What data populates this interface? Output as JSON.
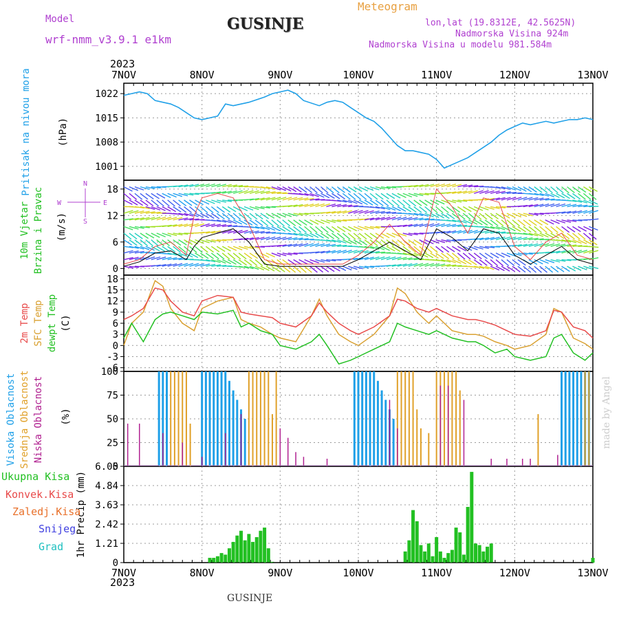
{
  "header": {
    "model_label": "Model",
    "model_name": "wrf-nmm_v3.9.1 e1km",
    "title": "GUSINJE",
    "meteogram": "Meteogram",
    "lonlat": "lon,lat (19.8312E, 42.5625N)",
    "elevation": "Nadmorska Visina 924m",
    "model_elevation": "Nadmorska Visina u modelu 981.584m",
    "year": "2023",
    "footer": "GUSINJE",
    "watermark": "made by Angel"
  },
  "colors": {
    "pressure": "#1fa0e8",
    "temp2m": "#e84a4a",
    "sfc": "#d9a030",
    "dewpt": "#22c022",
    "high_cloud": "#1fa0e8",
    "mid_cloud": "#e0a028",
    "low_cloud": "#b02090",
    "precip": "#22c022",
    "purple_label": "#b040d0",
    "orange_label": "#e8a040"
  },
  "chart_data": [
    {
      "type": "line",
      "panel": "pressure",
      "ylabel_1": "Pritisak na nivou mora",
      "ylabel_2": "(hPa)",
      "x_ticks": [
        "7NOV",
        "8NOV",
        "9NOV",
        "10NOV",
        "11NOV",
        "12NOV",
        "13NOV"
      ],
      "yticks": [
        1022,
        1015,
        1008,
        1001
      ],
      "ylim": [
        997,
        1025
      ],
      "x": [
        0,
        0.1,
        0.2,
        0.3,
        0.4,
        0.5,
        0.6,
        0.7,
        0.8,
        0.9,
        1.0,
        1.1,
        1.2,
        1.3,
        1.4,
        1.5,
        1.6,
        1.8,
        1.9,
        2.0,
        2.1,
        2.2,
        2.3,
        2.5,
        2.6,
        2.7,
        2.8,
        2.9,
        3.0,
        3.1,
        3.2,
        3.3,
        3.4,
        3.5,
        3.6,
        3.7,
        3.8,
        3.9,
        4.0,
        4.1,
        4.2,
        4.3,
        4.4,
        4.5,
        4.6,
        4.7,
        4.8,
        4.9,
        5.0,
        5.1,
        5.2,
        5.3,
        5.4,
        5.5,
        5.6,
        5.7,
        5.8,
        5.9,
        6.0
      ],
      "series": [
        {
          "values": [
            1021.5,
            1022,
            1022.5,
            1022,
            1020,
            1019.5,
            1019,
            1018,
            1016.5,
            1015,
            1014.5,
            1015,
            1015.5,
            1019,
            1018.5,
            1019,
            1019.5,
            1021,
            1022,
            1022.5,
            1023,
            1022,
            1020,
            1018.5,
            1019.5,
            1020,
            1019.5,
            1018,
            1016.5,
            1015,
            1014,
            1012,
            1009.5,
            1007,
            1005.5,
            1005.5,
            1005,
            1004.5,
            1003,
            1000.5,
            1001.5,
            1002.5,
            1003.5,
            1005,
            1006.5,
            1008,
            1010,
            1011.5,
            1012.5,
            1013.5,
            1013,
            1013.5,
            1014,
            1013.5,
            1014,
            1014.5,
            1014.5,
            1015,
            1014.5
          ]
        }
      ]
    },
    {
      "type": "line",
      "panel": "wind",
      "ylabel_1": "10m Vjetar",
      "ylabel_2": "Brzina i Pravac",
      "ylabel_3": "(m/s)",
      "compass": {
        "n": "N",
        "s": "S",
        "e": "E",
        "w": "W"
      },
      "yticks": [
        0,
        6,
        12,
        18
      ],
      "ylim": [
        -1.5,
        20
      ],
      "x": [
        0,
        0.2,
        0.4,
        0.6,
        0.8,
        0.9,
        1.0,
        1.2,
        1.4,
        1.6,
        1.8,
        2.0,
        2.5,
        2.8,
        3.0,
        3.2,
        3.4,
        3.6,
        3.8,
        4.0,
        4.2,
        4.4,
        4.6,
        4.8,
        5.0,
        5.2,
        5.4,
        5.6,
        5.8,
        6.0
      ],
      "series": [
        {
          "name": "speed",
          "values": [
            0.5,
            1.5,
            3.5,
            4,
            2,
            5,
            7,
            8,
            9,
            6,
            1,
            0.5,
            0.5,
            0.5,
            2,
            4,
            6,
            4,
            2,
            9,
            7,
            4,
            9,
            8,
            3,
            1,
            3,
            5,
            2,
            1
          ]
        },
        {
          "name": "gust",
          "values": [
            1,
            2,
            5,
            6,
            3,
            12,
            16,
            17,
            16,
            10,
            2,
            1,
            1,
            1,
            3,
            6,
            10,
            6,
            3,
            18,
            14,
            8,
            16,
            15,
            5,
            2,
            6,
            8,
            3,
            2
          ]
        }
      ]
    },
    {
      "type": "line",
      "panel": "temperature",
      "ylabel_1": "2m Temp",
      "ylabel_2": "SFC Temp",
      "ylabel_3": "dewpt Temp",
      "ylabel_4": "(C)",
      "yticks": [
        18,
        15,
        12,
        9,
        6,
        3,
        0,
        -3,
        -6
      ],
      "ylim": [
        -7,
        19
      ],
      "x": [
        0,
        0.1,
        0.25,
        0.4,
        0.5,
        0.6,
        0.75,
        0.9,
        1.0,
        1.2,
        1.4,
        1.5,
        1.6,
        1.75,
        1.9,
        2.0,
        2.2,
        2.4,
        2.5,
        2.6,
        2.75,
        2.9,
        3.0,
        3.2,
        3.4,
        3.5,
        3.6,
        3.75,
        3.9,
        4.0,
        4.2,
        4.4,
        4.5,
        4.6,
        4.75,
        4.9,
        5.0,
        5.2,
        5.4,
        5.5,
        5.6,
        5.75,
        5.9,
        6.0
      ],
      "series": [
        {
          "name": "2m Temp",
          "values": [
            7,
            8,
            10,
            15.5,
            15,
            12,
            9,
            8,
            12,
            13.5,
            13,
            9,
            8.5,
            8,
            7.5,
            6,
            5,
            8,
            11.5,
            9,
            6,
            4,
            3,
            5,
            8,
            12.5,
            12,
            10,
            9,
            10,
            8,
            7,
            7,
            6.5,
            5.5,
            4,
            3,
            2.5,
            4,
            9.5,
            9,
            5,
            4,
            2
          ]
        },
        {
          "name": "SFC Temp",
          "values": [
            0,
            6,
            9,
            17.5,
            16,
            10,
            6,
            4,
            10,
            12,
            13,
            7,
            6,
            5,
            3,
            2,
            1,
            8,
            12.5,
            8,
            3,
            1,
            0,
            3,
            8,
            15.5,
            14,
            9,
            6,
            8,
            4,
            3,
            3,
            2.5,
            1,
            0,
            -1,
            0,
            3,
            10,
            9,
            2,
            0.5,
            -1
          ]
        },
        {
          "name": "dewpt Temp",
          "values": [
            2,
            6,
            1,
            7,
            8.5,
            9,
            8,
            7,
            9,
            8.5,
            9.5,
            5,
            6,
            4,
            3,
            0,
            -1,
            1,
            3,
            0,
            -5,
            -4,
            -3,
            -1,
            1,
            6,
            5,
            4,
            3,
            4,
            2,
            1,
            1,
            0,
            -2,
            -1,
            -3,
            -4,
            -3,
            2,
            3,
            -2,
            -4,
            -2
          ]
        }
      ]
    },
    {
      "type": "bar",
      "panel": "clouds",
      "ylabel_1": "Visoka Oblacnost",
      "ylabel_2": "Srednja Oblacnost",
      "ylabel_3": "Niska Oblacnost",
      "ylabel_4": "(%)",
      "yticks": [
        100,
        75,
        50,
        25,
        0
      ],
      "ylim": [
        0,
        100
      ],
      "series": [
        {
          "name": "Visoka Oblacnost",
          "x": [
            0.45,
            0.5,
            0.55,
            1.0,
            1.05,
            1.1,
            1.15,
            1.2,
            1.25,
            1.3,
            1.35,
            1.4,
            1.45,
            1.5,
            1.55,
            2.95,
            3.0,
            3.05,
            3.1,
            3.15,
            3.2,
            3.25,
            3.3,
            3.35,
            3.4,
            3.45,
            5.6,
            5.65,
            5.7,
            5.75,
            5.8,
            5.85,
            5.9,
            5.95
          ],
          "values": [
            100,
            100,
            100,
            100,
            100,
            100,
            100,
            100,
            100,
            100,
            90,
            80,
            70,
            60,
            50,
            100,
            100,
            100,
            100,
            100,
            100,
            90,
            80,
            70,
            60,
            50,
            100,
            100,
            100,
            100,
            100,
            100,
            100,
            100
          ]
        },
        {
          "name": "Srednja Oblacnost",
          "x": [
            0.6,
            0.65,
            0.7,
            0.75,
            0.8,
            0.85,
            1.6,
            1.65,
            1.7,
            1.75,
            1.8,
            1.85,
            1.9,
            1.95,
            3.5,
            3.55,
            3.6,
            3.65,
            3.7,
            3.75,
            3.8,
            3.9,
            4.0,
            4.05,
            4.1,
            4.15,
            4.2,
            4.25,
            4.3,
            5.3,
            5.9,
            5.95
          ],
          "values": [
            100,
            100,
            100,
            100,
            100,
            45,
            100,
            100,
            100,
            100,
            100,
            100,
            55,
            100,
            100,
            100,
            100,
            100,
            100,
            60,
            40,
            35,
            100,
            100,
            100,
            100,
            100,
            100,
            80,
            55,
            100,
            100
          ]
        },
        {
          "name": "Niska Oblacnost",
          "x": [
            0.05,
            0.2,
            0.5,
            0.75,
            1.0,
            1.3,
            1.5,
            2.0,
            2.1,
            2.2,
            2.3,
            2.6,
            3.4,
            3.5,
            4.05,
            4.15,
            4.35,
            4.7,
            4.9,
            5.1,
            5.2,
            5.55
          ],
          "values": [
            45,
            45,
            35,
            25,
            10,
            35,
            55,
            40,
            30,
            15,
            10,
            8,
            70,
            40,
            85,
            85,
            70,
            8,
            8,
            8,
            8,
            12
          ]
        }
      ]
    },
    {
      "type": "bar",
      "panel": "precipitation",
      "legend": [
        "Ukupna Kisa",
        "Konvek.Kisa",
        "Zaledj.Kisa",
        "Snijeg",
        "Grad"
      ],
      "ylabel": "1hr Precip (mm)",
      "yticks": [
        6.05,
        4.84,
        3.63,
        2.42,
        1.21,
        0
      ],
      "ylim": [
        0,
        6.05
      ],
      "series": [
        {
          "name": "Ukupna Kisa",
          "x": [
            1.1,
            1.15,
            1.2,
            1.25,
            1.3,
            1.35,
            1.4,
            1.45,
            1.5,
            1.55,
            1.6,
            1.65,
            1.7,
            1.75,
            1.8,
            1.85,
            1.9,
            3.6,
            3.65,
            3.7,
            3.75,
            3.8,
            3.85,
            3.9,
            3.95,
            4.0,
            4.05,
            4.1,
            4.15,
            4.2,
            4.25,
            4.3,
            4.35,
            4.4,
            4.45,
            4.5,
            4.55,
            4.6,
            4.65,
            4.7,
            6.0
          ],
          "values": [
            0.3,
            0.3,
            0.4,
            0.6,
            0.5,
            0.9,
            1.3,
            1.7,
            2.0,
            1.4,
            1.8,
            1.3,
            1.6,
            2.0,
            2.2,
            0.9,
            0.05,
            0.7,
            1.4,
            3.3,
            2.6,
            1.1,
            0.7,
            1.2,
            0.4,
            1.6,
            0.7,
            0.3,
            0.6,
            0.8,
            2.2,
            1.9,
            0.5,
            3.5,
            5.7,
            1.2,
            1.1,
            0.7,
            1.0,
            1.2,
            0.3
          ]
        }
      ]
    }
  ]
}
